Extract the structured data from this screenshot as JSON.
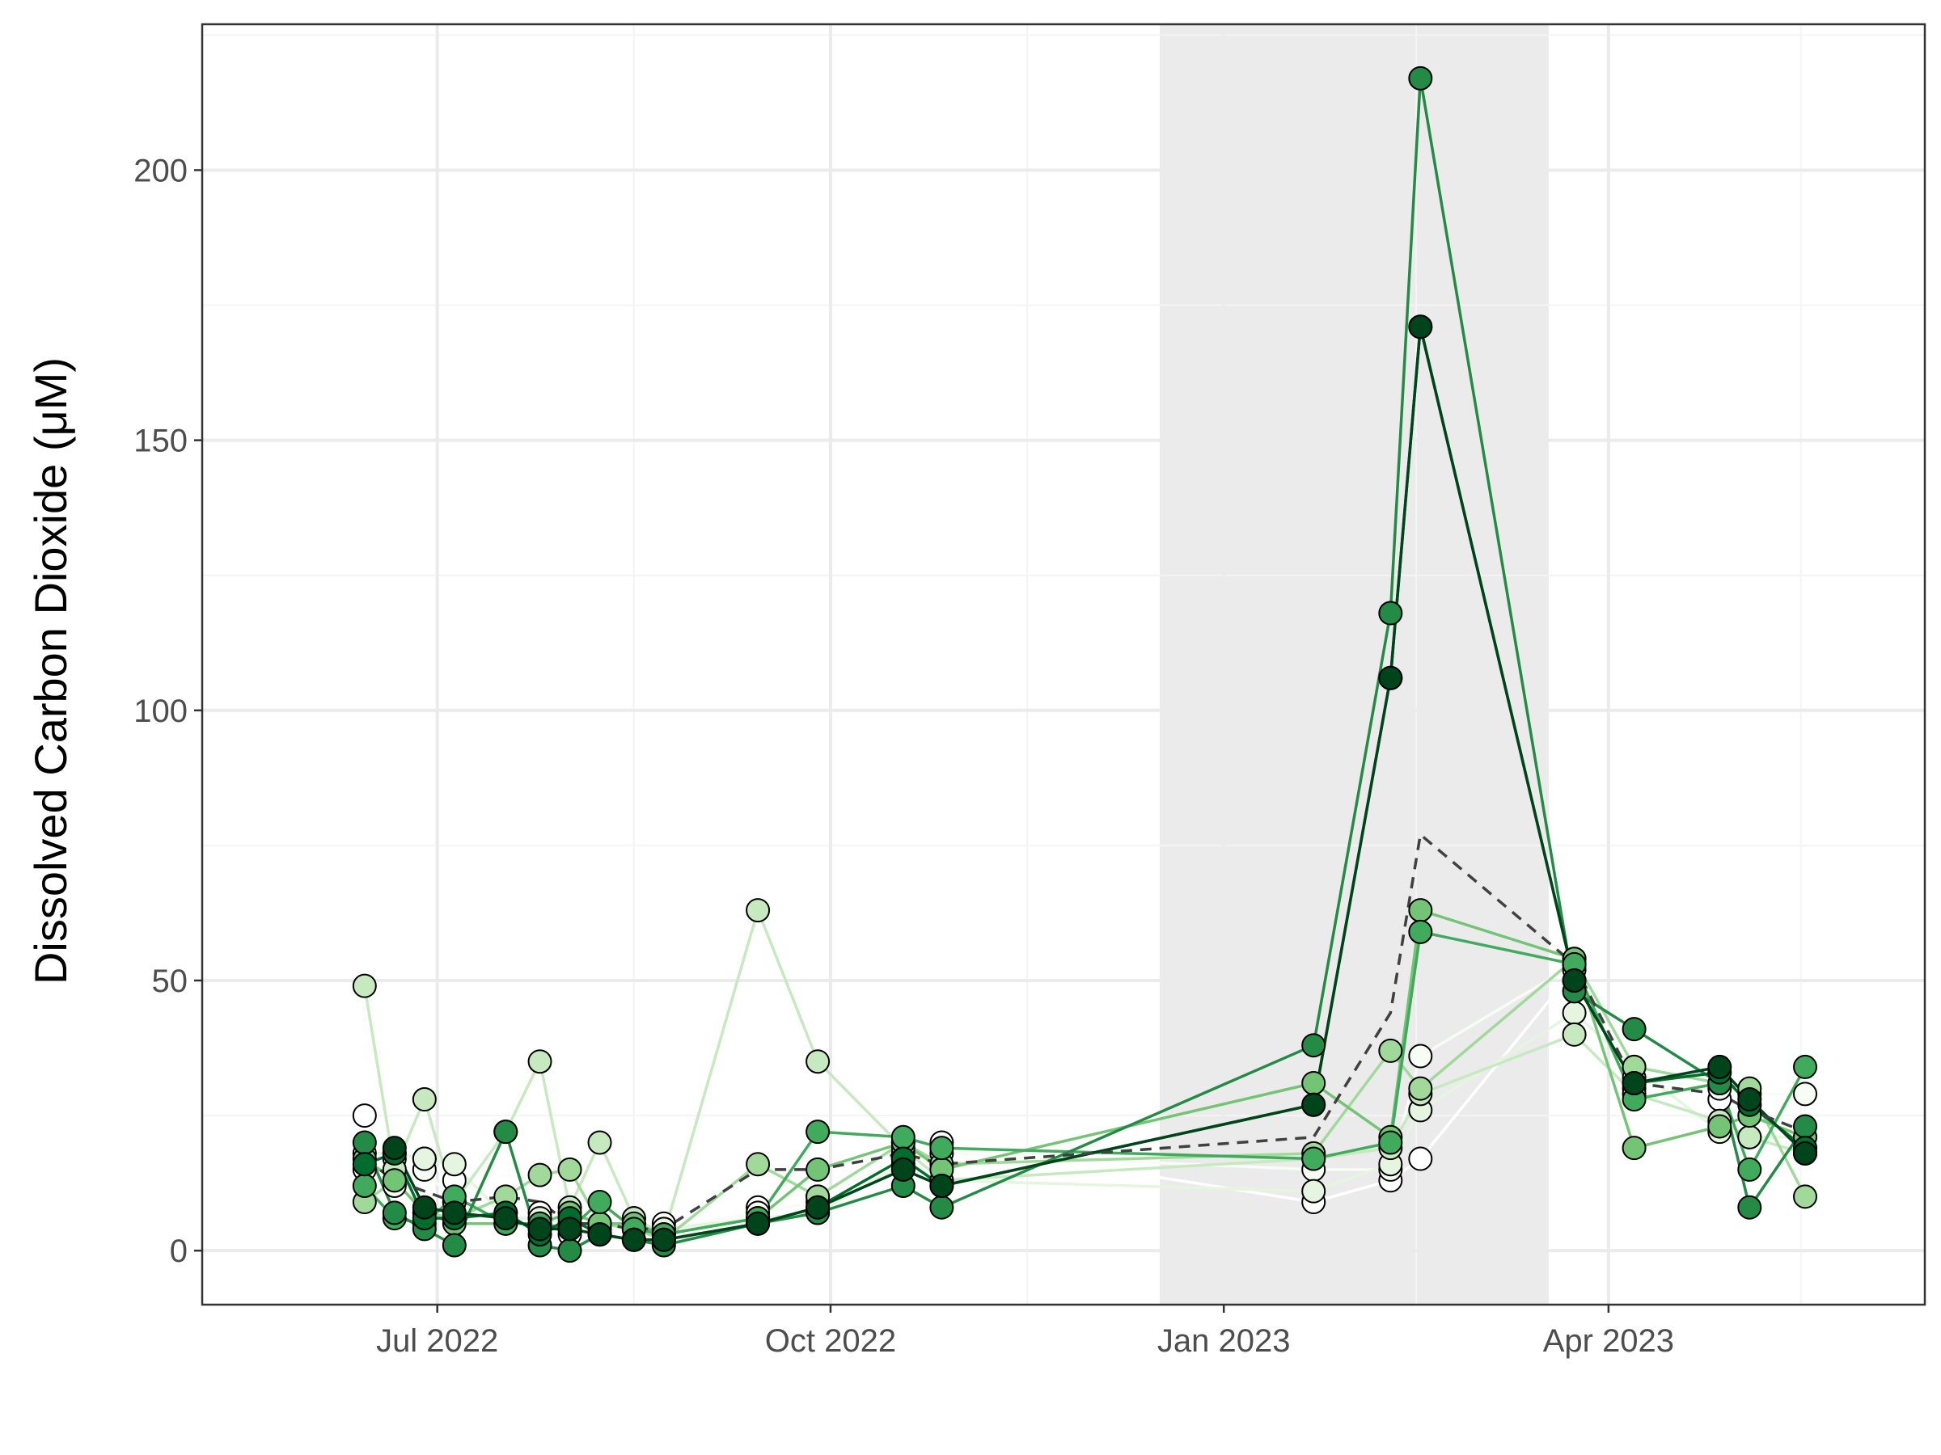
{
  "chart_data": {
    "type": "line",
    "title": "",
    "xlabel": "",
    "ylabel": "Dissolved Carbon Dioxide (μM)",
    "x_axis": {
      "type": "date",
      "range": [
        "2022-05-07",
        "2023-06-14"
      ],
      "ticks": [
        {
          "date": "2022-07-01",
          "label": "Jul 2022"
        },
        {
          "date": "2022-10-01",
          "label": "Oct 2022"
        },
        {
          "date": "2023-01-01",
          "label": "Jan 2023"
        },
        {
          "date": "2023-04-01",
          "label": "Apr 2023"
        }
      ],
      "minor_ticks": [
        "2022-08-16",
        "2022-11-16",
        "2023-02-15",
        "2023-05-16"
      ]
    },
    "y_axis": {
      "range": [
        -10,
        227
      ],
      "ticks": [
        0,
        50,
        100,
        150,
        200
      ],
      "minor_ticks": [
        25,
        75,
        125,
        175,
        225
      ]
    },
    "grid": true,
    "legend": "none",
    "shaded_period": {
      "start": "2022-12-17",
      "end": "2023-03-18",
      "color": "#ebebeb"
    },
    "colors": {
      "panel_border": "#333333",
      "grid_major": "#ebebeb",
      "grid_minor": "#f4f4f4",
      "mean_line": "#404040",
      "point_stroke": "#000000"
    },
    "mean_line": {
      "style": "dashed",
      "dates": [
        "2022-06-14",
        "2022-06-21",
        "2022-06-28",
        "2022-07-05",
        "2022-07-17",
        "2022-07-25",
        "2022-08-01",
        "2022-08-08",
        "2022-08-16",
        "2022-08-23",
        "2022-09-14",
        "2022-09-28",
        "2022-10-18",
        "2022-10-27",
        "2023-01-22",
        "2023-02-09",
        "2023-02-16",
        "2023-03-24",
        "2023-04-07",
        "2023-04-27",
        "2023-05-04",
        "2023-05-17"
      ],
      "values": [
        17,
        13,
        11,
        9,
        10,
        9,
        5,
        5,
        4,
        4,
        15,
        15,
        18,
        16,
        21,
        44,
        77,
        53,
        31,
        29,
        26,
        22
      ]
    },
    "series": [
      {
        "color": "#ffffff",
        "line_color": "#ffffff",
        "dates": [
          "2022-06-14",
          "2022-06-21",
          "2022-06-28",
          "2022-07-05",
          "2022-07-17",
          "2022-07-25",
          "2022-08-01",
          "2022-08-08",
          "2022-08-16",
          "2022-08-23",
          "2022-09-14",
          "2022-09-28",
          "2022-10-18",
          "2022-10-27",
          "2023-01-22",
          "2023-02-09",
          "2023-02-16",
          "2023-03-24",
          "2023-04-07",
          "2023-04-27",
          "2023-05-04",
          "2023-05-17"
        ],
        "values": [
          25,
          17,
          17,
          13,
          7,
          6,
          3,
          4,
          6,
          5,
          8,
          10,
          17,
          20,
          9,
          13,
          17,
          52,
          30,
          28,
          27,
          19
        ]
      },
      {
        "color": "#f7fcf5",
        "line_color": "#f7fcf5",
        "dates": [
          "2022-06-14",
          "2022-06-21",
          "2022-06-28",
          "2022-07-05",
          "2022-07-17",
          "2022-07-25",
          "2022-08-01",
          "2022-08-08",
          "2022-08-16",
          "2022-08-23",
          "2022-09-14",
          "2022-09-28",
          "2022-10-18",
          "2022-10-27",
          "2023-01-22",
          "2023-02-09",
          "2023-02-16",
          "2023-03-24",
          "2023-04-07",
          "2023-04-27",
          "2023-05-04",
          "2023-05-17"
        ],
        "values": [
          15,
          12,
          15,
          9,
          5,
          7,
          4,
          3,
          5,
          4,
          7,
          9,
          18,
          18,
          15,
          15,
          36,
          53,
          32,
          30,
          29,
          29
        ]
      },
      {
        "color": "#e5f5e0",
        "line_color": "#e5f5e0",
        "dates": [
          "2022-06-14",
          "2022-06-21",
          "2022-06-28",
          "2022-07-05",
          "2022-07-17",
          "2022-07-25",
          "2022-08-01",
          "2022-08-08",
          "2022-08-16",
          "2022-08-23",
          "2022-09-14",
          "2022-09-28",
          "2022-10-18",
          "2022-10-27",
          "2023-01-22",
          "2023-02-09",
          "2023-02-16",
          "2023-03-24",
          "2023-04-07",
          "2023-04-27",
          "2023-05-04",
          "2023-05-17"
        ],
        "values": [
          18,
          18,
          17,
          16,
          6,
          6,
          5,
          5,
          5,
          4,
          6,
          7,
          16,
          13,
          11,
          16,
          26,
          44,
          34,
          22,
          21,
          21
        ]
      },
      {
        "color": "#c7e9c0",
        "line_color": "#c7e9c0",
        "dates": [
          "2022-06-14",
          "2022-06-21",
          "2022-06-28",
          "2022-07-05",
          "2022-07-17",
          "2022-07-25",
          "2022-08-01",
          "2022-08-08",
          "2022-08-16",
          "2022-08-23",
          "2022-09-14",
          "2022-09-28",
          "2022-10-18",
          "2022-10-27",
          "2023-01-22",
          "2023-02-09",
          "2023-02-16",
          "2023-03-24",
          "2023-04-07",
          "2023-04-27",
          "2023-05-04",
          "2023-05-17"
        ],
        "values": [
          49,
          15,
          28,
          9,
          22,
          35,
          8,
          20,
          6,
          3,
          63,
          35,
          19,
          13,
          17,
          19,
          29,
          40,
          29,
          24,
          21,
          18
        ]
      },
      {
        "color": "#a1d99b",
        "line_color": "#a1d99b",
        "dates": [
          "2022-06-14",
          "2022-06-21",
          "2022-06-28",
          "2022-07-05",
          "2022-07-17",
          "2022-07-25",
          "2022-08-01",
          "2022-08-08",
          "2022-08-16",
          "2022-08-23",
          "2022-09-14",
          "2022-09-28",
          "2022-10-18",
          "2022-10-27",
          "2023-01-22",
          "2023-02-09",
          "2023-02-16",
          "2023-03-24",
          "2023-04-07",
          "2023-04-27",
          "2023-05-04",
          "2023-05-17"
        ],
        "values": [
          9,
          13,
          7,
          6,
          10,
          14,
          15,
          5,
          4,
          2,
          16,
          10,
          20,
          16,
          18,
          37,
          30,
          54,
          34,
          31,
          30,
          10
        ]
      },
      {
        "color": "#74c476",
        "line_color": "#74c476",
        "dates": [
          "2022-06-14",
          "2022-06-21",
          "2022-06-28",
          "2022-07-05",
          "2022-07-17",
          "2022-07-25",
          "2022-08-01",
          "2022-08-08",
          "2022-08-16",
          "2022-08-23",
          "2022-09-14",
          "2022-09-28",
          "2022-10-18",
          "2022-10-27",
          "2023-01-22",
          "2023-02-09",
          "2023-02-16",
          "2023-03-24",
          "2023-04-07",
          "2023-04-27",
          "2023-05-04",
          "2023-05-17"
        ],
        "values": [
          17,
          13,
          7,
          5,
          5,
          5,
          7,
          5,
          5,
          3,
          6,
          15,
          20,
          15,
          31,
          21,
          63,
          54,
          19,
          23,
          25,
          21
        ]
      },
      {
        "color": "#41ab5d",
        "line_color": "#41ab5d",
        "dates": [
          "2022-06-14",
          "2022-06-21",
          "2022-06-28",
          "2022-07-05",
          "2022-07-17",
          "2022-07-25",
          "2022-08-01",
          "2022-08-08",
          "2022-08-16",
          "2022-08-23",
          "2022-09-14",
          "2022-09-28",
          "2022-10-18",
          "2022-10-27",
          "2023-01-22",
          "2023-02-09",
          "2023-02-16",
          "2023-03-24",
          "2023-04-07",
          "2023-04-27",
          "2023-05-04",
          "2023-05-17"
        ],
        "values": [
          12,
          6,
          5,
          10,
          5,
          5,
          4,
          9,
          4,
          3,
          6,
          22,
          21,
          19,
          17,
          20,
          59,
          53,
          28,
          31,
          15,
          34
        ]
      },
      {
        "color": "#238b45",
        "line_color": "#238b45",
        "dates": [
          "2022-06-14",
          "2022-06-21",
          "2022-06-28",
          "2022-07-05",
          "2022-07-17",
          "2022-07-25",
          "2022-08-01",
          "2022-08-08",
          "2022-08-16",
          "2022-08-23",
          "2022-09-14",
          "2022-09-28",
          "2022-10-18",
          "2022-10-27",
          "2023-01-22",
          "2023-02-09",
          "2023-02-16",
          "2023-03-24",
          "2023-04-07",
          "2023-04-27",
          "2023-05-04",
          "2023-05-17"
        ],
        "values": [
          20,
          7,
          4,
          1,
          22,
          1,
          0,
          3,
          2,
          1,
          5,
          7,
          12,
          8,
          38,
          118,
          217,
          48,
          41,
          31,
          8,
          23
        ]
      },
      {
        "color": "#006d2c",
        "line_color": "#006d2c",
        "dates": [
          "2022-06-14",
          "2022-06-21",
          "2022-06-28",
          "2022-07-05",
          "2022-07-17",
          "2022-07-25",
          "2022-08-01",
          "2022-08-08",
          "2022-08-16",
          "2022-08-23",
          "2022-09-14",
          "2022-09-28",
          "2022-10-18",
          "2022-10-27",
          "2023-01-22",
          "2023-02-09",
          "2023-02-16",
          "2023-03-24",
          "2023-04-07",
          "2023-04-27",
          "2023-05-04",
          "2023-05-17"
        ],
        "values": [
          16,
          18,
          6,
          6,
          7,
          3,
          6,
          3,
          2,
          2,
          5,
          8,
          17,
          12,
          27,
          106,
          171,
          50,
          31,
          33,
          27,
          19
        ]
      },
      {
        "color": "#00441b",
        "line_color": "#00441b",
        "dates": [
          "2022-05-25",
          "2022-06-21",
          "2022-06-28",
          "2022-07-05",
          "2022-07-17",
          "2022-07-25",
          "2022-08-01",
          "2022-08-08",
          "2022-08-16",
          "2022-08-23",
          "2022-09-14",
          "2022-09-28",
          "2022-10-18",
          "2022-10-27",
          "2023-01-22",
          "2023-02-09",
          "2023-02-16",
          "2023-03-24",
          "2023-04-07",
          "2023-04-27",
          "2023-05-04",
          "2023-05-17"
        ],
        "values": [
          null,
          19,
          8,
          7,
          6,
          4,
          4,
          3,
          2,
          2,
          5,
          8,
          15,
          12,
          27,
          106,
          171,
          50,
          31,
          34,
          28,
          18
        ]
      }
    ]
  }
}
